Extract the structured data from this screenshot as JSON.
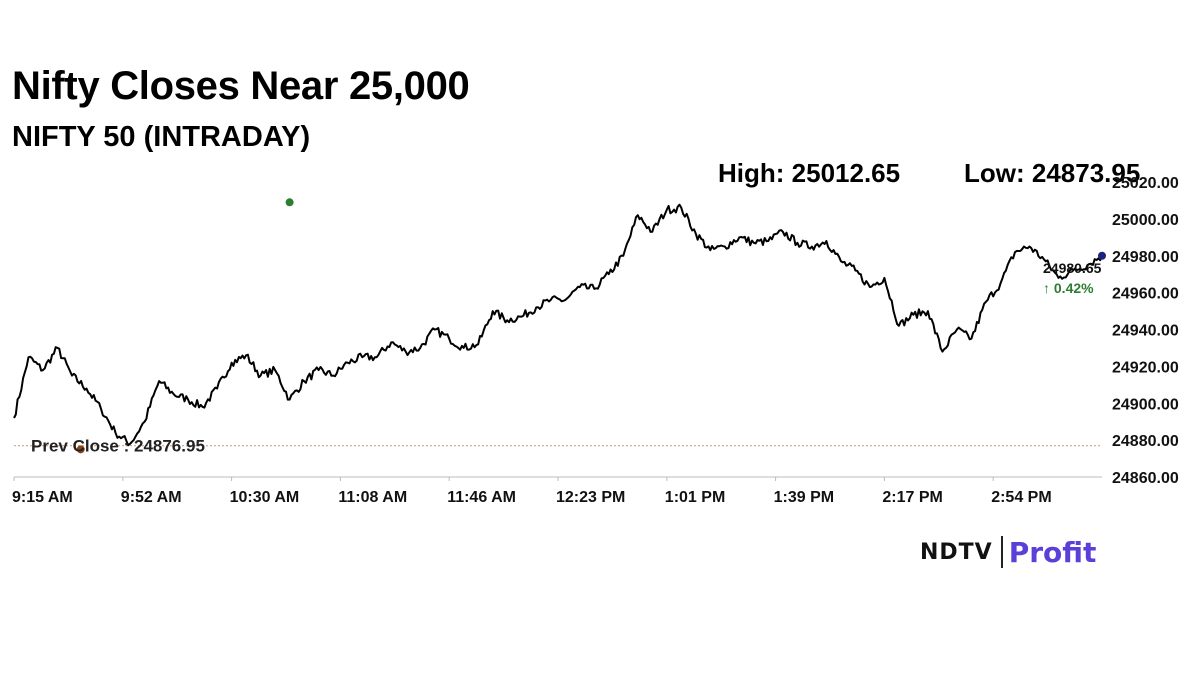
{
  "header": {
    "title": "Nifty Closes Near 25,000",
    "subtitle": "NIFTY 50 (INTRADAY)",
    "high_label": "High: 25012.65",
    "low_label": "Low: 24873.95"
  },
  "logo": {
    "ndtv": "NDTV",
    "profit": "Profit"
  },
  "chart_data": {
    "type": "line",
    "title": "",
    "xlabel": "",
    "ylabel": "",
    "ylim": [
      24860,
      25020
    ],
    "yticks": [
      24860,
      24880,
      24900,
      24920,
      24940,
      24960,
      24980,
      25000,
      25020
    ],
    "ytick_labels": [
      "24860.00",
      "24880.00",
      "24900.00",
      "24920.00",
      "24940.00",
      "24960.00",
      "24980.00",
      "25000.00",
      "25020.00"
    ],
    "xticks": [
      "9:15 AM",
      "9:52 AM",
      "10:30 AM",
      "11:08 AM",
      "11:46 AM",
      "12:23 PM",
      "1:01 PM",
      "1:39 PM",
      "2:17 PM",
      "2:54 PM"
    ],
    "x_minutes": [
      0,
      5,
      10,
      15,
      20,
      25,
      30,
      35,
      40,
      45,
      50,
      55,
      60,
      65,
      70,
      75,
      80,
      85,
      90,
      95,
      100,
      105,
      110,
      115,
      120,
      125,
      130,
      135,
      140,
      145,
      150,
      155,
      160,
      165,
      170,
      175,
      180,
      185,
      190,
      195,
      200,
      205,
      210,
      215,
      220,
      225,
      230,
      235,
      240,
      245,
      250,
      255,
      260,
      265,
      270,
      275,
      280,
      285,
      290,
      295,
      300,
      305,
      310,
      315,
      320,
      325,
      330,
      335,
      340,
      345,
      350,
      355,
      360,
      365,
      370,
      375
    ],
    "series": [
      {
        "values": [
          24892,
          24925,
          24918,
          24930,
          24915,
          24908,
          24897,
          24884,
          24878,
          24890,
          24912,
          24905,
          24902,
          24898,
          24908,
          24922,
          24926,
          24915,
          24918,
          24902,
          24912,
          24918,
          24915,
          24922,
          24925,
          24925,
          24933,
          24928,
          24930,
          24940,
          24935,
          24930,
          24932,
          24950,
          24945,
          24947,
          24952,
          24956,
          24956,
          24963,
          24962,
          24970,
          24980,
          25002,
          24993,
          25005,
          25006,
          24992,
          24983,
          24985,
          24990,
          24987,
          24988,
          24993,
          24987,
          24985,
          24988,
          24977,
          24972,
          24963,
          24968,
          24942,
          24948,
          24950,
          24928,
          24940,
          24935,
          24955,
          24965,
          24982,
          24985,
          24978,
          24968,
          24972,
          24975,
          24980
        ]
      }
    ],
    "prev_close": 24876.95,
    "prev_close_label": "Prev Close : 24876.95",
    "last_value_label": "24980.65",
    "change_label": "↑ 0.42%",
    "high_point": [
      95,
      25009
    ],
    "low_point": [
      23,
      24875
    ],
    "colors": {
      "line": "#000000",
      "high_marker": "#2e7d32",
      "low_marker": "#8b4513",
      "end_marker": "#1a237e",
      "prev_close_line": "#c49a7a",
      "change": "#2e7d32"
    }
  }
}
